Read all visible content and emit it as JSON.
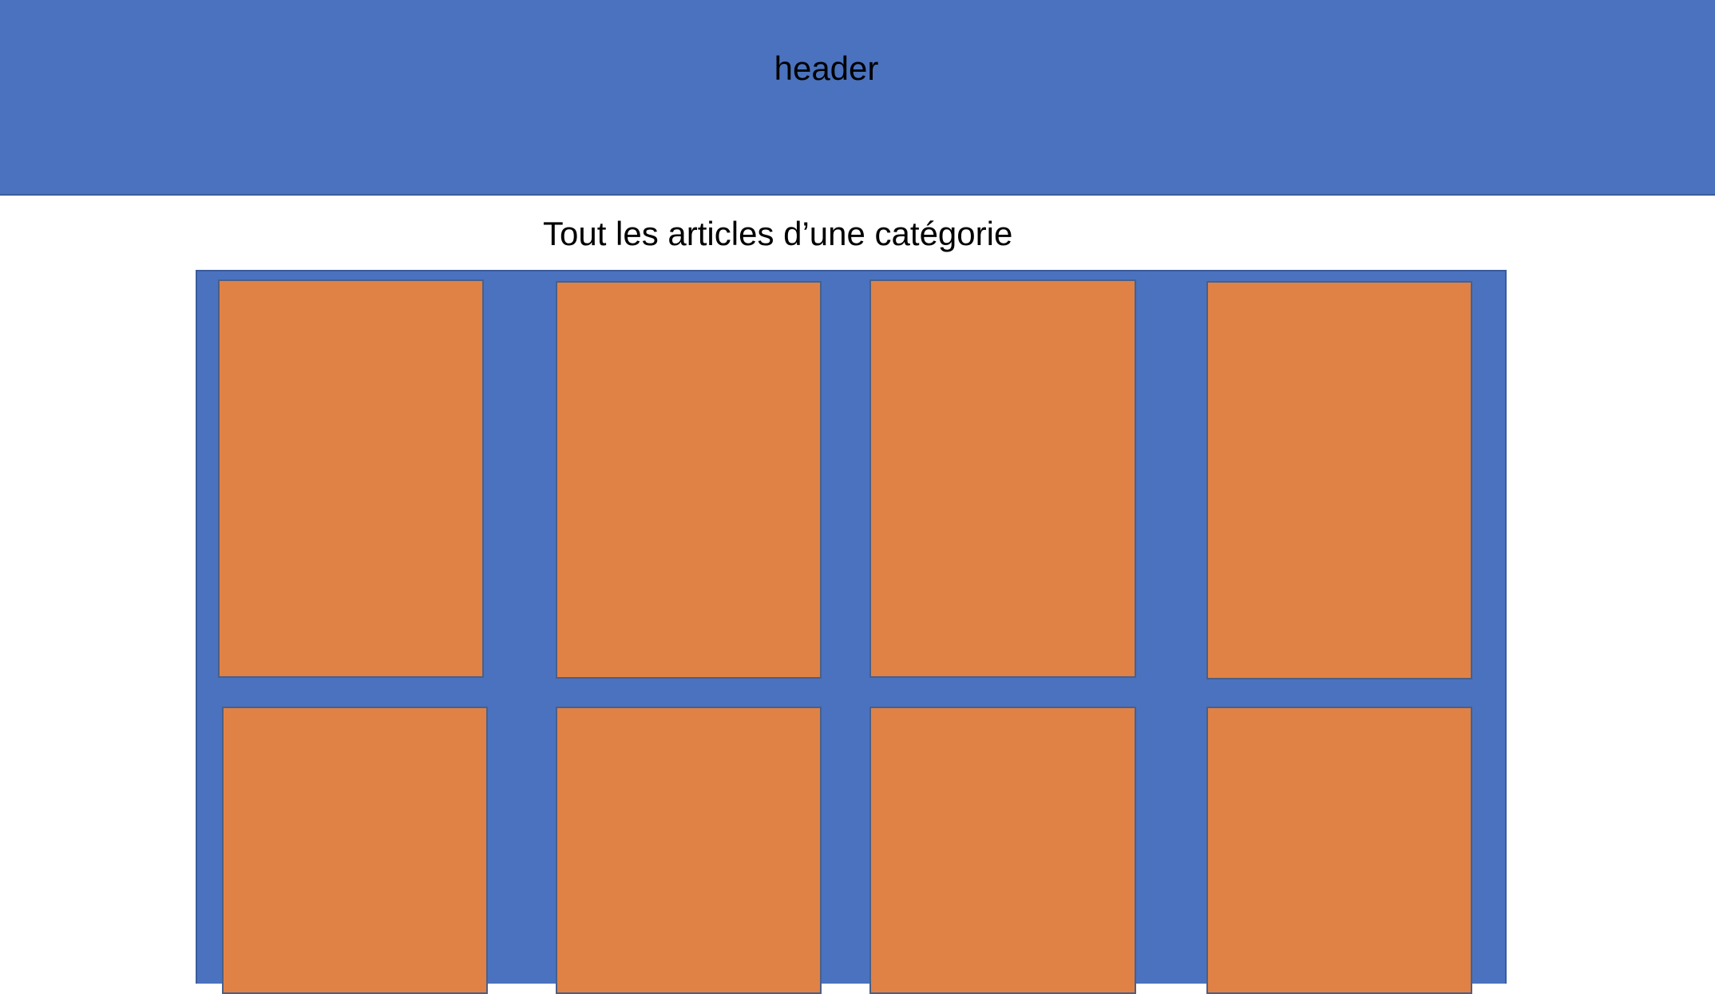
{
  "header": {
    "label": "header"
  },
  "section": {
    "title": "Tout les articles d’une catégorie"
  },
  "colors": {
    "header_bg": "#4a72be",
    "grid_bg": "#4a72be",
    "card_fill": "#e08246"
  },
  "grid": {
    "rows": 2,
    "columns": 4,
    "card_count": 8
  }
}
